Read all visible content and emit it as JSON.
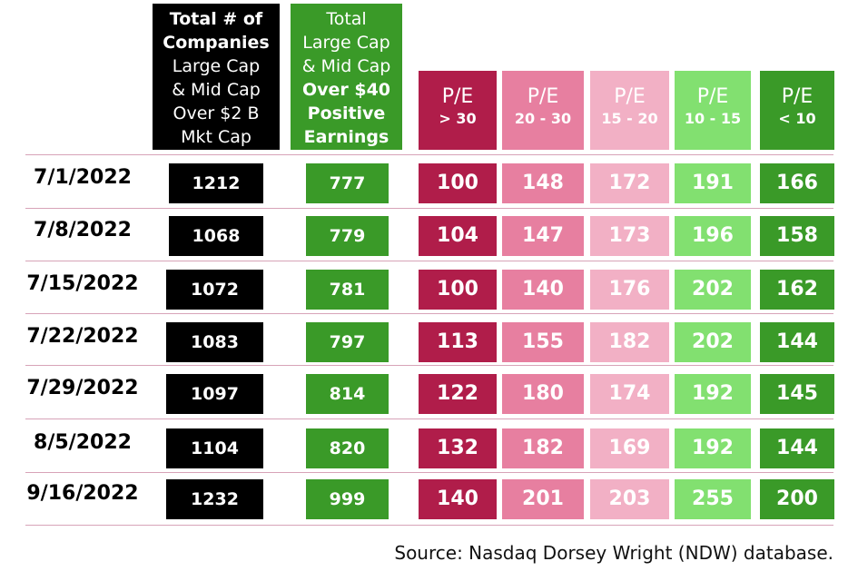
{
  "headers": {
    "total": {
      "line1": "Total # of",
      "line2": "Companies",
      "line3": "Large Cap",
      "line4": "& Mid Cap",
      "line5": "Over $2 B",
      "line6": "Mkt Cap"
    },
    "positive": {
      "line1": "Total",
      "line2": "Large Cap",
      "line3": "& Mid Cap",
      "line4": "Over $40",
      "line5": "Positive",
      "line6": "Earnings"
    },
    "pe": [
      {
        "line1": "P/E",
        "line2": "> 30"
      },
      {
        "line1": "P/E",
        "line2": "20 - 30"
      },
      {
        "line1": "P/E",
        "line2": "15 - 20"
      },
      {
        "line1": "P/E",
        "line2": "10 - 15"
      },
      {
        "line1": "P/E",
        "line2": "< 10"
      }
    ]
  },
  "colors": {
    "total": "#000000",
    "positive": "#3a9a28",
    "pe": [
      "#b01d4a",
      "#e77fa0",
      "#f2b0c5",
      "#82e070",
      "#3a9a28"
    ],
    "divider": "#d7a3b8"
  },
  "chart_data": {
    "type": "table",
    "columns": [
      "Total # of Companies Large Cap & Mid Cap Over $2 B Mkt Cap",
      "Total Large Cap & Mid Cap Over $40 Positive Earnings",
      "P/E > 30",
      "P/E 20 - 30",
      "P/E 15 - 20",
      "P/E 10 - 15",
      "P/E < 10"
    ],
    "rows": [
      {
        "date": "7/1/2022",
        "total": "1212",
        "positive": "777",
        "pe": [
          "100",
          "148",
          "172",
          "191",
          "166"
        ]
      },
      {
        "date": "7/8/2022",
        "total": "1068",
        "positive": "779",
        "pe": [
          "104",
          "147",
          "173",
          "196",
          "158"
        ]
      },
      {
        "date": "7/15/2022",
        "total": "1072",
        "positive": "781",
        "pe": [
          "100",
          "140",
          "176",
          "202",
          "162"
        ]
      },
      {
        "date": "7/22/2022",
        "total": "1083",
        "positive": "797",
        "pe": [
          "113",
          "155",
          "182",
          "202",
          "144"
        ]
      },
      {
        "date": "7/29/2022",
        "total": "1097",
        "positive": "814",
        "pe": [
          "122",
          "180",
          "174",
          "192",
          "145"
        ]
      },
      {
        "date": "8/5/2022",
        "total": "1104",
        "positive": "820",
        "pe": [
          "132",
          "182",
          "169",
          "192",
          "144"
        ]
      },
      {
        "date": "9/16/2022",
        "total": "1232",
        "positive": "999",
        "pe": [
          "140",
          "201",
          "203",
          "255",
          "200"
        ]
      }
    ]
  },
  "source": "Source: Nasdaq Dorsey Wright (NDW) database."
}
